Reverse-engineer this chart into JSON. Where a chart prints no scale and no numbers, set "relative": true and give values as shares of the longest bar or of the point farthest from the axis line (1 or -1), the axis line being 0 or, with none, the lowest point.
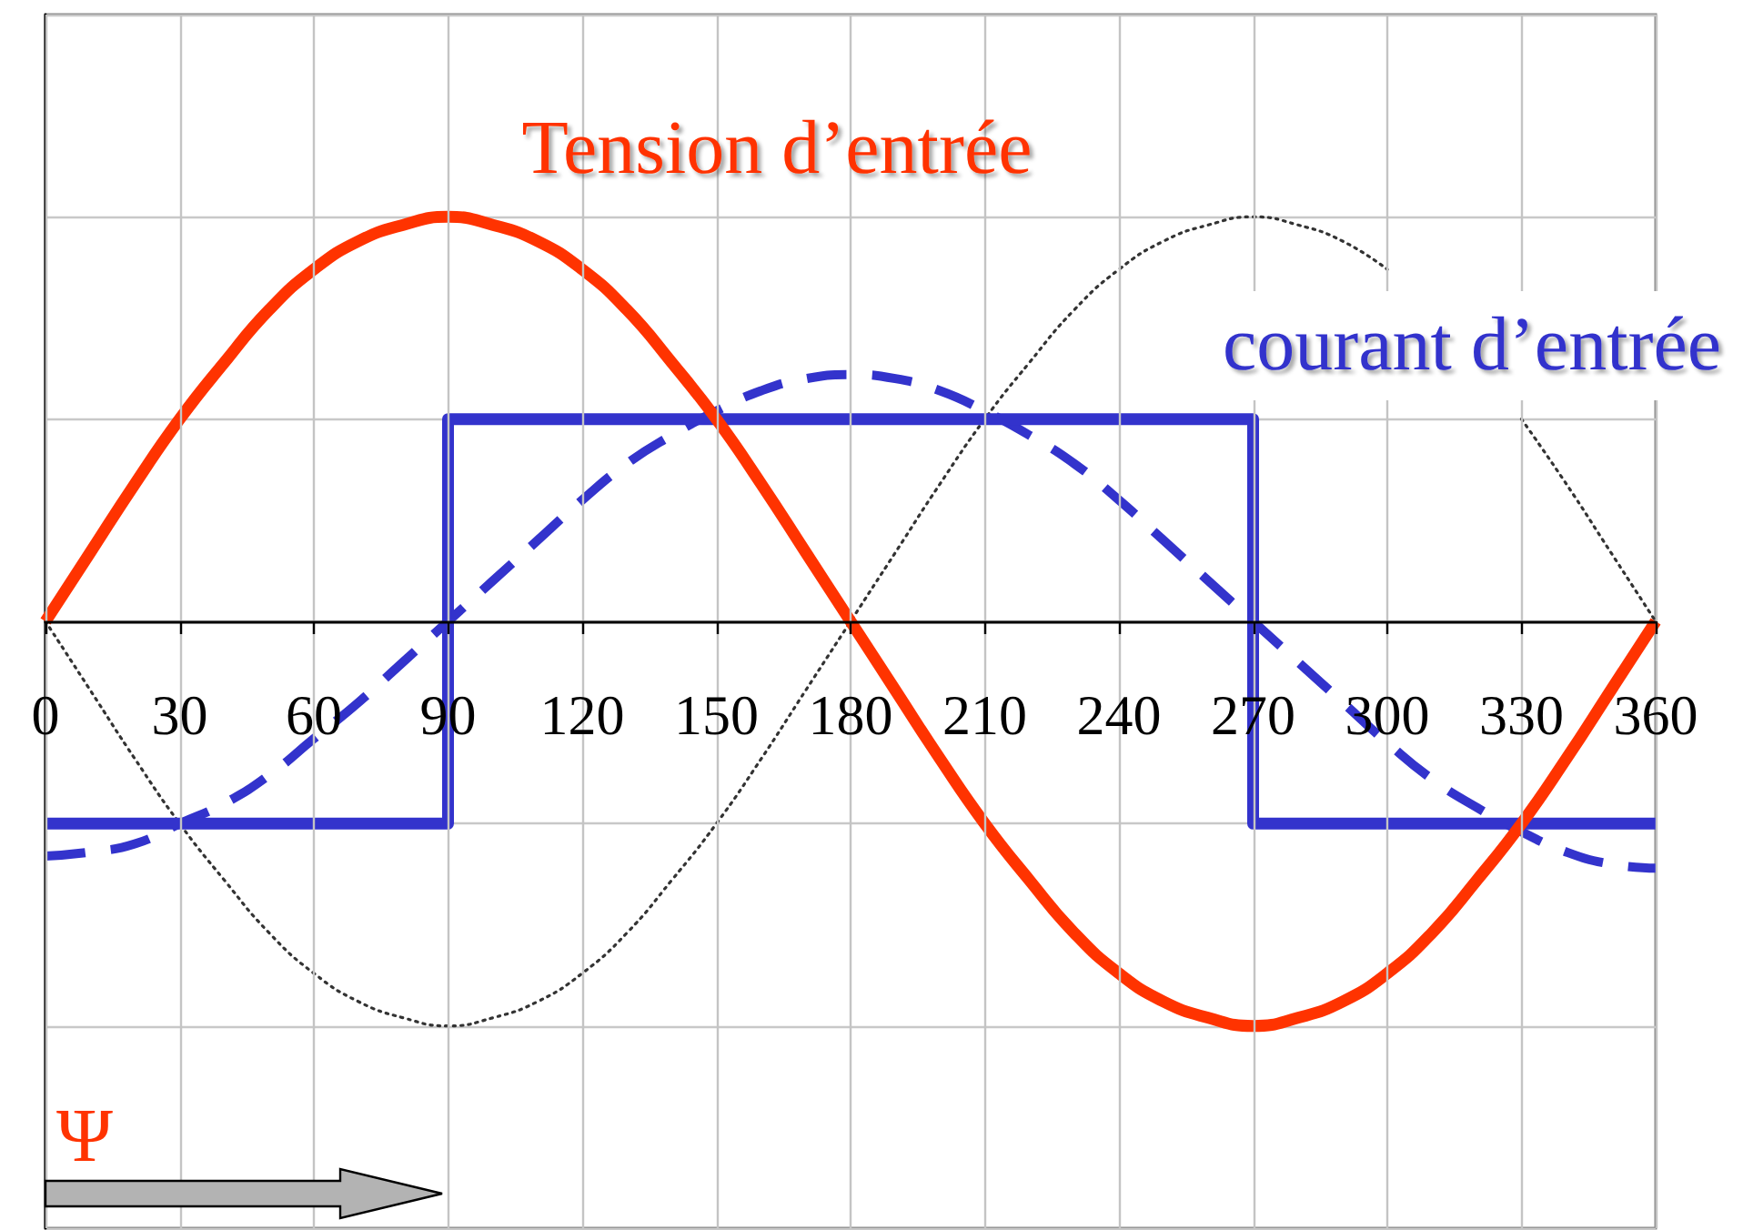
{
  "chart_data": {
    "type": "line",
    "x": [
      0,
      10,
      20,
      30,
      40,
      50,
      60,
      70,
      80,
      90,
      100,
      110,
      120,
      130,
      140,
      150,
      160,
      170,
      180,
      190,
      200,
      210,
      220,
      230,
      240,
      250,
      260,
      270,
      280,
      290,
      300,
      310,
      320,
      330,
      340,
      350,
      360
    ],
    "xlim": [
      0,
      360
    ],
    "xticks": [
      0,
      30,
      60,
      90,
      120,
      150,
      180,
      210,
      240,
      270,
      300,
      330,
      360
    ],
    "relative": true,
    "grid": true,
    "marker": "none",
    "annotations": [
      "Ψ"
    ],
    "series": [
      {
        "color": "#333333",
        "line_style": "dotted",
        "values": [
          0,
          -0.17,
          -0.34,
          -0.5,
          -0.64,
          -0.77,
          -0.87,
          -0.94,
          -0.98,
          -1,
          -0.98,
          -0.94,
          -0.87,
          -0.77,
          -0.64,
          -0.5,
          -0.34,
          -0.17,
          0,
          0.17,
          0.34,
          0.5,
          0.64,
          0.77,
          0.87,
          0.94,
          0.98,
          1,
          0.98,
          0.94,
          0.87,
          null,
          null,
          0.5,
          0.34,
          0.17,
          0
        ]
      },
      {
        "color": "#3333cc",
        "line_style": "dashed",
        "values": [
          -0.58,
          -0.57,
          -0.55,
          -0.5,
          -0.45,
          -0.38,
          -0.29,
          -0.2,
          -0.1,
          0,
          0.1,
          0.2,
          0.3,
          0.39,
          0.46,
          0.52,
          0.57,
          0.6,
          0.61,
          0.6,
          0.57,
          0.52,
          0.46,
          0.39,
          0.3,
          0.2,
          0.1,
          0,
          -0.1,
          -0.2,
          -0.3,
          -0.39,
          -0.46,
          -0.52,
          -0.57,
          -0.6,
          -0.61
        ]
      },
      {
        "name": "courant d’entrée",
        "type": "step",
        "x": [
          0,
          90,
          270,
          360
        ],
        "color": "#3333cc",
        "line_style": "solid",
        "values": [
          -0.5,
          0.5,
          -0.5,
          -0.5
        ]
      },
      {
        "name": "Tension d’entrée",
        "color": "#ff3300",
        "line_style": "solid",
        "values": [
          0,
          0.17,
          0.34,
          0.5,
          0.64,
          0.77,
          0.87,
          0.94,
          0.98,
          1,
          0.98,
          0.94,
          0.87,
          0.77,
          0.64,
          0.5,
          0.34,
          0.17,
          0,
          -0.17,
          -0.34,
          -0.5,
          -0.64,
          -0.77,
          -0.87,
          -0.94,
          -0.98,
          -1,
          -0.98,
          -0.94,
          -0.87,
          -0.77,
          -0.64,
          -0.5,
          -0.34,
          -0.17,
          0
        ]
      }
    ]
  }
}
